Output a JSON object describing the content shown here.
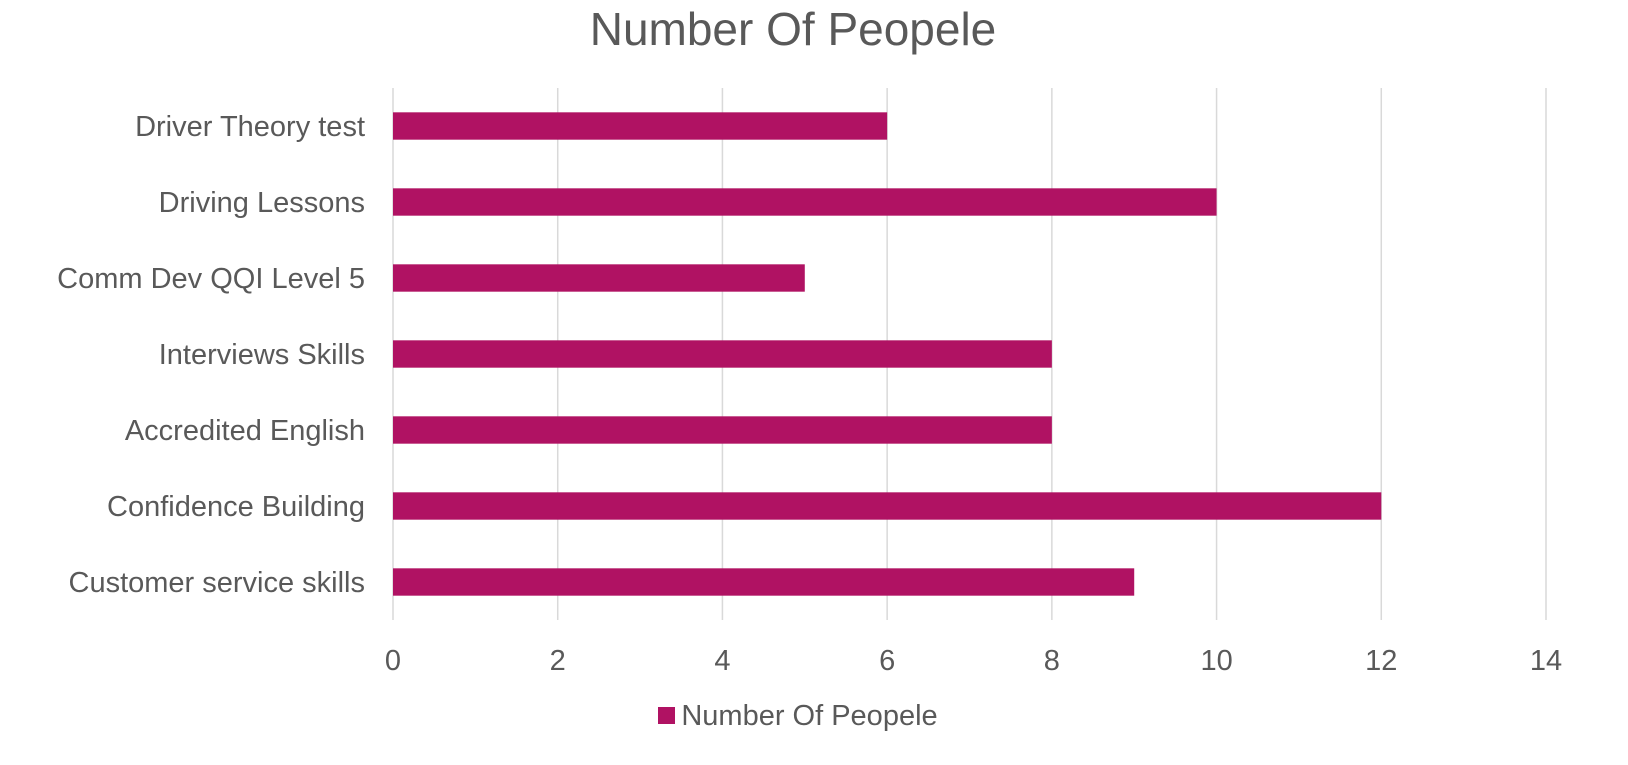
{
  "chart_data": {
    "type": "bar",
    "orientation": "horizontal",
    "title": "Number Of Peopele",
    "categories": [
      "Customer service skills",
      "Confidence Building",
      "Accredited English",
      "Interviews Skills ",
      "Comm Dev QQI Level 5",
      "Driving Lessons",
      "Driver Theory test"
    ],
    "series": [
      {
        "name": "Number Of Peopele",
        "values": [
          9,
          12,
          8,
          8,
          5,
          10,
          6
        ],
        "color": "#b01263"
      }
    ],
    "xlim": [
      0,
      14
    ],
    "xticks": [
      0,
      2,
      4,
      6,
      8,
      10,
      12,
      14
    ],
    "grid": true,
    "legend": "bottom"
  }
}
